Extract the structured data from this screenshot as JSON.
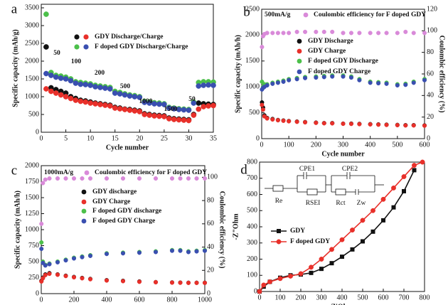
{
  "chart_data": [
    {
      "type": "scatter",
      "label": "a",
      "xlabel": "Cycle number",
      "ylabel": "Specific capacity (mAh/g)",
      "xlim": [
        0,
        35
      ],
      "xticks": [
        0,
        5,
        10,
        15,
        20,
        25,
        30,
        35
      ],
      "ylim": [
        0,
        3600
      ],
      "yticks": [
        0,
        500,
        1000,
        1500,
        2000,
        2500,
        3000,
        3500
      ],
      "x": [
        1,
        2,
        3,
        4,
        5,
        6,
        7,
        8,
        9,
        10,
        11,
        12,
        13,
        14,
        15,
        16,
        17,
        18,
        19,
        20,
        21,
        22,
        23,
        24,
        25,
        26,
        27,
        28,
        29,
        30,
        31,
        32,
        33,
        34,
        35
      ],
      "series": [
        {
          "name": "GDY Discharge/Charge",
          "colors": [
            "#111111",
            "#e8302a"
          ],
          "discharge": [
            2400,
            1250,
            1200,
            1150,
            1100,
            1000,
            950,
            900,
            880,
            850,
            820,
            800,
            780,
            760,
            700,
            680,
            650,
            640,
            620,
            600,
            520,
            500,
            480,
            470,
            460,
            400,
            380,
            370,
            360,
            350,
            500,
            820,
            800,
            790,
            780
          ],
          "charge": [
            1220,
            1150,
            1100,
            1050,
            1000,
            950,
            900,
            870,
            850,
            820,
            800,
            780,
            760,
            740,
            680,
            660,
            640,
            620,
            600,
            580,
            500,
            480,
            460,
            450,
            440,
            380,
            360,
            350,
            340,
            330,
            480,
            650,
            720,
            740,
            750
          ]
        },
        {
          "name": "F doped GDY Discharge/Charge",
          "colors": [
            "#4cc04a",
            "#3a4fb0"
          ],
          "discharge": [
            3320,
            1680,
            1600,
            1580,
            1550,
            1500,
            1420,
            1400,
            1380,
            1360,
            1320,
            1300,
            1280,
            1260,
            1150,
            1120,
            1080,
            1050,
            1030,
            1000,
            870,
            850,
            830,
            820,
            800,
            700,
            680,
            660,
            650,
            640,
            850,
            1400,
            1420,
            1420,
            1410
          ],
          "charge": [
            1650,
            1600,
            1550,
            1520,
            1500,
            1450,
            1380,
            1350,
            1340,
            1320,
            1280,
            1260,
            1240,
            1220,
            1100,
            1080,
            1050,
            1020,
            1000,
            980,
            840,
            820,
            800,
            790,
            780,
            680,
            660,
            640,
            630,
            620,
            820,
            1300,
            1320,
            1330,
            1320
          ]
        }
      ],
      "annotations": [
        "50",
        "100",
        "200",
        "500",
        "1000",
        "1500",
        "50"
      ]
    },
    {
      "type": "scatter",
      "label": "b",
      "xlabel": "Cycle number",
      "ylabel": "Specific capacity (mAh/h)",
      "y2label": "Coulombic efficiency (%)",
      "xlim": [
        0,
        600
      ],
      "xticks": [
        0,
        100,
        200,
        300,
        400,
        500,
        600
      ],
      "ylim": [
        0,
        2500
      ],
      "yticks": [
        0,
        500,
        1000,
        1500,
        2000,
        2500
      ],
      "y2lim": [
        0,
        120
      ],
      "y2ticks": [
        0,
        20,
        40,
        60,
        80,
        100,
        120
      ],
      "x": [
        1,
        5,
        10,
        20,
        40,
        60,
        80,
        100,
        130,
        160,
        200,
        230,
        260,
        300,
        330,
        360,
        400,
        430,
        460,
        500,
        530,
        560,
        600
      ],
      "series": [
        {
          "name": "Coulombic efficiency for F doped GDY",
          "color": "#d98ad9",
          "axis": "y2",
          "values": [
            85,
            95,
            97,
            98,
            98,
            98,
            98,
            98,
            99,
            99,
            99,
            99,
            99,
            98,
            98,
            98,
            98,
            98,
            98,
            98,
            99,
            98,
            98
          ]
        },
        {
          "name": "GDY Discharge",
          "color": "#111111",
          "values": [
            700,
            600,
            450,
            400,
            380,
            360,
            350,
            340,
            330,
            320,
            310,
            300,
            300,
            290,
            290,
            285,
            280,
            275,
            270,
            265,
            260,
            260,
            255
          ]
        },
        {
          "name": "GDY Charge",
          "color": "#e8302a",
          "values": [
            650,
            560,
            430,
            390,
            370,
            355,
            345,
            335,
            325,
            315,
            305,
            297,
            295,
            287,
            285,
            280,
            275,
            270,
            265,
            260,
            255,
            255,
            250
          ]
        },
        {
          "name": "F doped GDY Discharge",
          "color": "#4cc04a",
          "values": [
            1100,
            1000,
            1050,
            1050,
            1080,
            1100,
            1120,
            1150,
            1170,
            1190,
            1200,
            1210,
            1220,
            1220,
            1200,
            1150,
            1100,
            1090,
            1080,
            1050,
            1060,
            1100,
            1150
          ]
        },
        {
          "name": "F doped GDY Charge",
          "color": "#3a4fb0",
          "values": [
            950,
            980,
            1000,
            1030,
            1060,
            1080,
            1100,
            1130,
            1150,
            1170,
            1180,
            1190,
            1200,
            1200,
            1180,
            1130,
            1080,
            1070,
            1060,
            1030,
            1040,
            1080,
            1130
          ]
        }
      ],
      "annotations": [
        "500mA/g"
      ]
    },
    {
      "type": "scatter",
      "label": "c",
      "xlabel": "Cycle number",
      "ylabel": "Specific capacity (mAh/h)",
      "y2label": "Coulombic efficiency (%)",
      "xlim": [
        0,
        1000
      ],
      "xticks": [
        0,
        200,
        400,
        600,
        800,
        1000
      ],
      "ylim": [
        0,
        2000
      ],
      "yticks": [
        0,
        250,
        500,
        750,
        1000,
        1250,
        1500,
        1750,
        2000
      ],
      "y2lim": [
        0,
        110
      ],
      "y2ticks": [
        0,
        20,
        40,
        60,
        80,
        100
      ],
      "x": [
        1,
        10,
        25,
        50,
        100,
        150,
        200,
        250,
        300,
        400,
        500,
        600,
        700,
        800,
        850,
        900,
        950,
        1000
      ],
      "series": [
        {
          "name": "Coulombic efficiency for F doped GDY",
          "color": "#d98ad9",
          "axis": "y2",
          "values": [
            60,
            95,
            98,
            99,
            99,
            99,
            99,
            99,
            99,
            99,
            99,
            99,
            99,
            99,
            99,
            99,
            99,
            99
          ]
        },
        {
          "name": "GDY discharge",
          "color": "#111111",
          "values": [
            200,
            250,
            300,
            320,
            300,
            280,
            260,
            245,
            230,
            210,
            200,
            190,
            180,
            175,
            172,
            170,
            170,
            170
          ]
        },
        {
          "name": "GDY Charge",
          "color": "#e8302a",
          "values": [
            190,
            240,
            290,
            310,
            295,
            275,
            255,
            240,
            225,
            205,
            195,
            185,
            178,
            172,
            170,
            168,
            168,
            168
          ]
        },
        {
          "name": "F doped GDY discharge",
          "color": "#4cc04a",
          "values": [
            800,
            500,
            450,
            470,
            500,
            530,
            560,
            580,
            600,
            630,
            640,
            650,
            660,
            680,
            680,
            660,
            670,
            680
          ]
        },
        {
          "name": "F doped GDY Charge",
          "color": "#3a4fb0",
          "values": [
            700,
            480,
            440,
            460,
            490,
            520,
            550,
            570,
            590,
            620,
            630,
            640,
            650,
            670,
            670,
            650,
            660,
            670
          ]
        }
      ],
      "annotations": [
        "1000mA/g"
      ]
    },
    {
      "type": "line",
      "label": "d",
      "xlabel": "Z'Ohm",
      "ylabel": "-Z\"Ohm",
      "xlim": [
        0,
        800
      ],
      "xticks": [
        0,
        100,
        200,
        300,
        400,
        500,
        600,
        700,
        800
      ],
      "ylim": [
        0,
        800
      ],
      "yticks": [
        0,
        100,
        200,
        300,
        400,
        500,
        600,
        700,
        800
      ],
      "series": [
        {
          "name": "GDY",
          "color": "#111111",
          "marker": "square",
          "x": [
            0,
            20,
            50,
            100,
            150,
            200,
            250,
            300,
            350,
            400,
            450,
            500,
            550,
            600,
            650,
            700,
            750
          ],
          "values": [
            0,
            30,
            60,
            85,
            100,
            105,
            115,
            140,
            175,
            215,
            260,
            310,
            370,
            440,
            520,
            620,
            750
          ]
        },
        {
          "name": "F doped GDY",
          "color": "#e8302a",
          "marker": "circle",
          "x": [
            0,
            20,
            50,
            100,
            150,
            200,
            250,
            300,
            350,
            400,
            450,
            500,
            550,
            600,
            650,
            700,
            750,
            790
          ],
          "values": [
            0,
            40,
            60,
            80,
            95,
            110,
            150,
            200,
            260,
            320,
            380,
            440,
            500,
            570,
            640,
            710,
            780,
            800
          ]
        }
      ],
      "annotations": [
        "CPE1",
        "CPE2",
        "Re",
        "RSEI",
        "Rct",
        "Zw"
      ]
    }
  ]
}
